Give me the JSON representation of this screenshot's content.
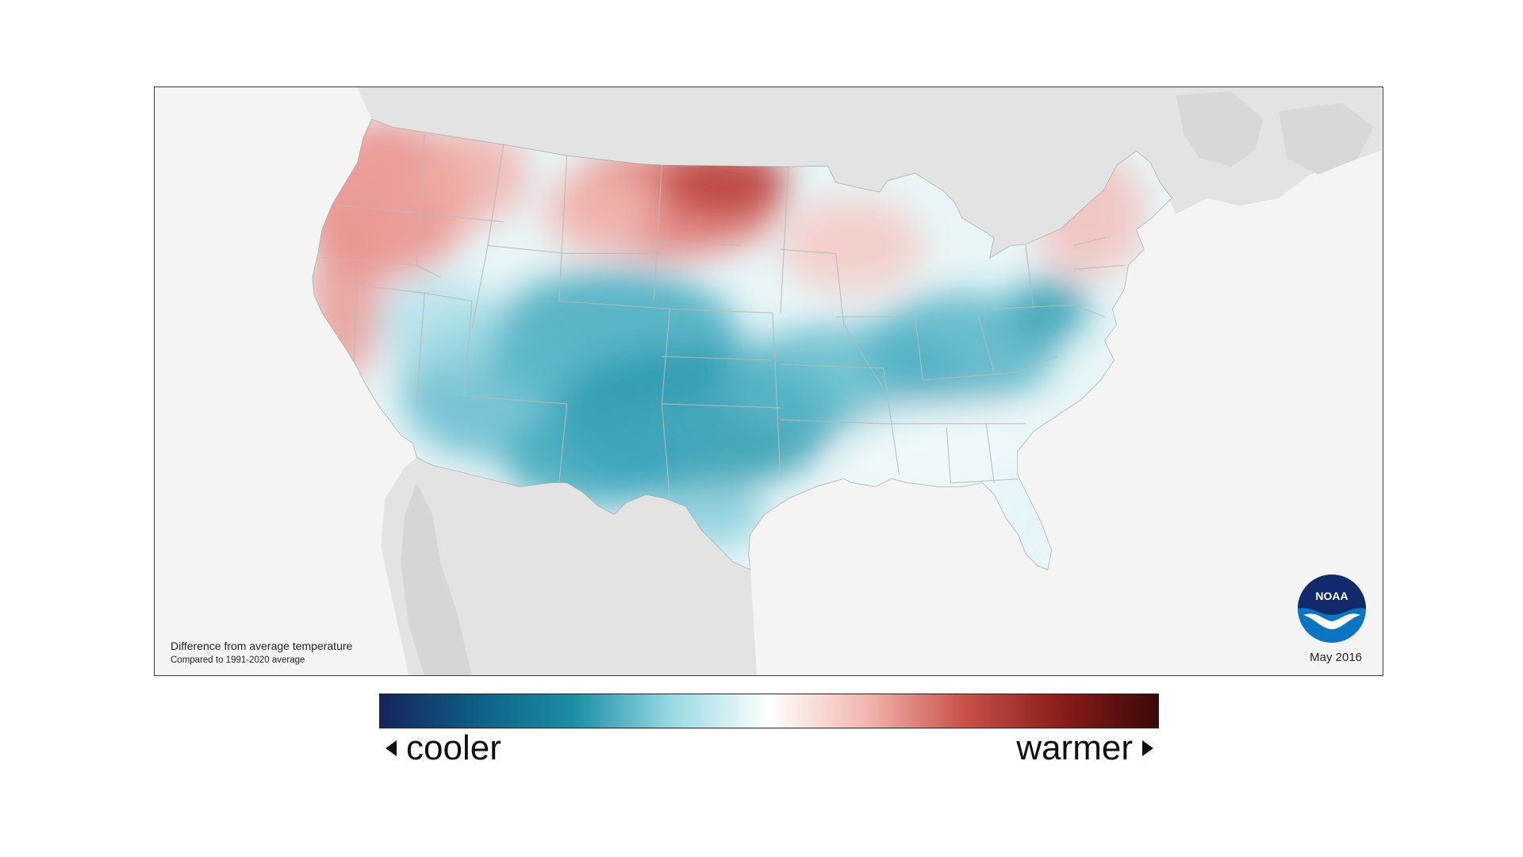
{
  "map": {
    "caption_title": "Difference from average temperature",
    "caption_sub": "Compared to 1991-2020 average",
    "date": "May 2016",
    "logo_text": "NOAA"
  },
  "legend": {
    "left_label": "cooler",
    "right_label": "warmer",
    "gradient": [
      "#15245e",
      "#0e5f86",
      "#1b8fa5",
      "#9ad9e3",
      "#ffffff",
      "#f2b6ae",
      "#c9524a",
      "#8a1c1a",
      "#3d0708"
    ]
  },
  "colors": {
    "land_bg": "#e3e3e3",
    "ocean_bg": "#f4f4f4",
    "warm": "#e98a86",
    "cool": "#3fa9bd",
    "state_lines": "#b9b9b9"
  }
}
